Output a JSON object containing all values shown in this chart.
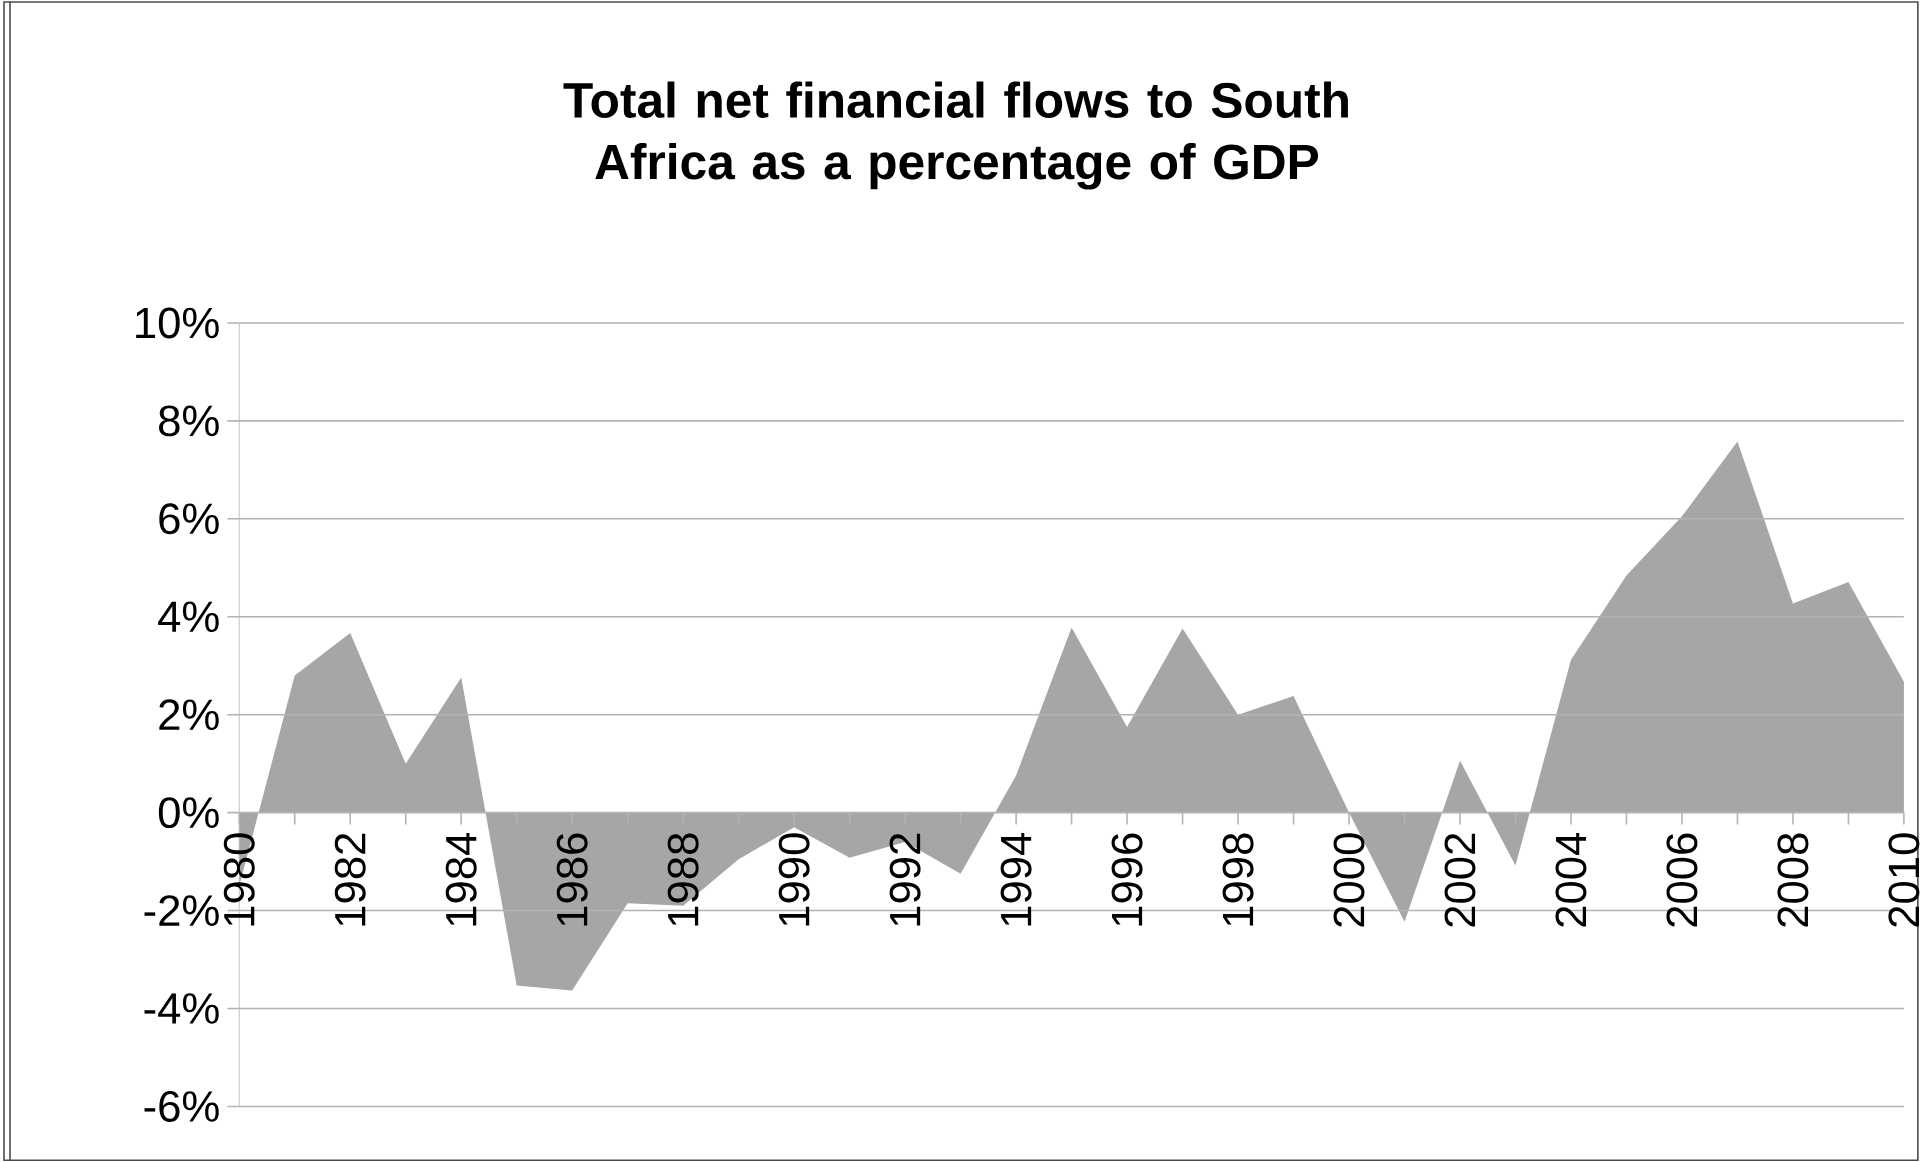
{
  "chart_data": {
    "type": "area",
    "title": "Total net financial flows to South Africa as a percentage of GDP",
    "x": [
      1980,
      1981,
      1982,
      1983,
      1984,
      1985,
      1986,
      1987,
      1988,
      1989,
      1990,
      1991,
      1992,
      1993,
      1994,
      1995,
      1996,
      1997,
      1998,
      1999,
      2000,
      2001,
      2002,
      2003,
      2004,
      2005,
      2006,
      2007,
      2008,
      2009,
      2010
    ],
    "values": [
      -1.5,
      2.8,
      3.67,
      1.0,
      2.76,
      -3.53,
      -3.63,
      -1.85,
      -1.9,
      -0.95,
      -0.3,
      -0.92,
      -0.6,
      -1.25,
      0.76,
      3.78,
      1.75,
      3.76,
      2.0,
      2.38,
      0.0,
      -2.23,
      1.06,
      -1.08,
      3.12,
      4.84,
      6.05,
      7.58,
      4.27,
      4.71,
      2.67
    ],
    "color": "#a6a6a6",
    "xlim": [
      1980,
      2010
    ],
    "xticks": [
      1980,
      {
        "value": 1981,
        "label": null
      },
      1982,
      {
        "value": 1983,
        "label": null
      },
      1984,
      {
        "value": 1985,
        "label": null
      },
      1986,
      {
        "value": 1987,
        "label": null
      },
      1988,
      {
        "value": 1989,
        "label": null
      },
      1990,
      {
        "value": 1991,
        "label": null
      },
      1992,
      {
        "value": 1993,
        "label": null
      },
      1994,
      {
        "value": 1995,
        "label": null
      },
      1996,
      {
        "value": 1997,
        "label": null
      },
      1998,
      {
        "value": 1999,
        "label": null
      },
      2000,
      {
        "value": 2001,
        "label": null
      },
      2002,
      {
        "value": 2003,
        "label": null
      },
      2004,
      {
        "value": 2005,
        "label": null
      },
      2006,
      {
        "value": 2007,
        "label": null
      },
      2008,
      {
        "value": 2009,
        "label": null
      },
      2010
    ],
    "ylim": [
      -6,
      10
    ],
    "yticks": [
      {
        "value": -6,
        "label": "-6%"
      },
      {
        "value": -4,
        "label": "-4%"
      },
      {
        "value": -2,
        "label": "-2%"
      },
      {
        "value": 0,
        "label": "0%"
      },
      {
        "value": 2,
        "label": "2%"
      },
      {
        "value": 4,
        "label": "4%"
      },
      {
        "value": 6,
        "label": "6%"
      },
      {
        "value": 8,
        "label": "8%"
      },
      {
        "value": 10,
        "label": "10%"
      }
    ],
    "grid": "y"
  }
}
